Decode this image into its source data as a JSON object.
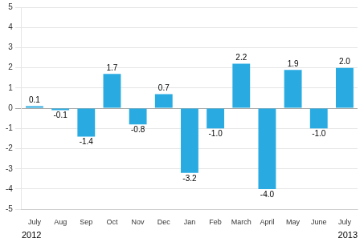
{
  "chart_data": {
    "type": "bar",
    "categories": [
      "July",
      "Aug",
      "Sep",
      "Oct",
      "Nov",
      "Dec",
      "Jan",
      "Feb",
      "March",
      "April",
      "May",
      "June",
      "July"
    ],
    "values": [
      0.1,
      -0.1,
      -1.4,
      1.7,
      -0.8,
      0.7,
      -3.2,
      -1.0,
      2.2,
      -4.0,
      1.9,
      -1.0,
      2.0
    ],
    "value_labels": [
      "0.1",
      "-0.1",
      "-1.4",
      "1.7",
      "-0.8",
      "0.7",
      "-3.2",
      "-1.0",
      "2.2",
      "-4.0",
      "1.9",
      "-1.0",
      "2.0"
    ],
    "data_labels": true,
    "color": "#29ABE2",
    "ylim": [
      -5,
      5
    ],
    "yticks": [
      -5,
      -4,
      -3,
      -2,
      -1,
      0,
      1,
      2,
      3,
      4,
      5
    ],
    "grid": true,
    "annotations": [
      "2012",
      "2013"
    ]
  }
}
